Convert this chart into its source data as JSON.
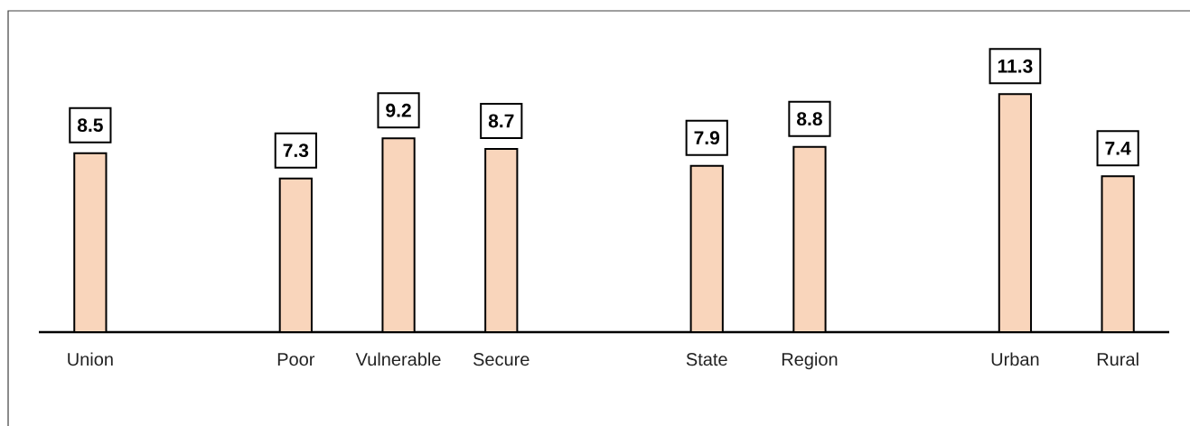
{
  "chart_data": {
    "type": "bar",
    "categories": [
      "Union",
      null,
      "Poor",
      "Vulnerable",
      "Secure",
      null,
      "State",
      "Region",
      null,
      "Urban",
      "Rural"
    ],
    "values": [
      8.5,
      null,
      7.3,
      9.2,
      8.7,
      null,
      7.9,
      8.8,
      null,
      11.3,
      7.4
    ],
    "color": "#f9d5bb",
    "data_labels": true
  }
}
